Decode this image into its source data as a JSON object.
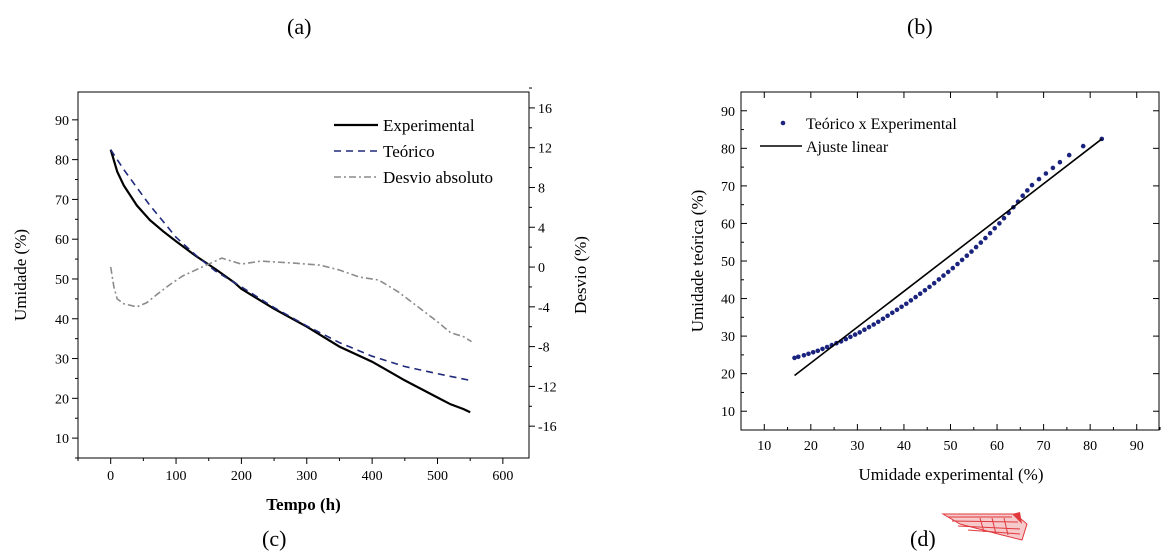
{
  "panel_labels": {
    "a": "(a)",
    "b": "(b)",
    "c": "(c)",
    "d": "(d)"
  },
  "colors": {
    "experimental": "#000000",
    "teorico": "#1f2a7a",
    "desvio": "#8c8c8c",
    "scatter": "#1a237e",
    "fit": "#000000",
    "stamp": "#e0393e"
  },
  "chart_data": [
    {
      "id": "left",
      "type": "line",
      "xlabel": "Tempo (h)",
      "ylabel": "Umidade (%)",
      "y2label": "Desvio (%)",
      "xlim": [
        -50,
        640
      ],
      "ylim": [
        5,
        97
      ],
      "y2lim": [
        -19.2,
        17.6
      ],
      "xticks": [
        "0",
        "100",
        "200",
        "300",
        "400",
        "500",
        "600"
      ],
      "yticks": [
        "10",
        "20",
        "30",
        "40",
        "50",
        "60",
        "70",
        "80",
        "90"
      ],
      "y2ticks": [
        "-16",
        "-12",
        "-8",
        "-4",
        "0",
        "4",
        "8",
        "12",
        "16"
      ],
      "legend_position": "top-right",
      "series": [
        {
          "name": "Experimental",
          "axis": "left",
          "style": "solid",
          "x": [
            0,
            10,
            20,
            40,
            60,
            80,
            100,
            130,
            160,
            190,
            200,
            250,
            300,
            350,
            400,
            450,
            500,
            520,
            540,
            550
          ],
          "y": [
            82.5,
            77,
            73.5,
            68.5,
            64.8,
            62,
            59.5,
            55.8,
            52.5,
            49,
            47.5,
            42.5,
            38,
            33,
            29.2,
            24.5,
            20.2,
            18.5,
            17.3,
            16.5
          ]
        },
        {
          "name": "Teórico",
          "axis": "left",
          "style": "dashed",
          "x": [
            0,
            20,
            40,
            60,
            80,
            100,
            130,
            160,
            200,
            250,
            300,
            350,
            400,
            450,
            500,
            550
          ],
          "y": [
            82.5,
            77.5,
            73,
            68.5,
            64.5,
            60.5,
            56,
            52,
            48,
            42.8,
            38.2,
            34,
            30.6,
            28,
            26.2,
            24.5
          ]
        },
        {
          "name": "Desvio absoluto",
          "axis": "right",
          "style": "dashdot",
          "x": [
            0,
            5,
            10,
            20,
            40,
            55,
            70,
            90,
            110,
            140,
            170,
            200,
            230,
            280,
            320,
            350,
            380,
            410,
            440,
            470,
            500,
            520,
            540,
            552
          ],
          "y": [
            0,
            -2,
            -3.2,
            -3.7,
            -4,
            -3.6,
            -2.8,
            -1.8,
            -0.9,
            0,
            0.9,
            0.3,
            0.6,
            0.4,
            0.2,
            -0.3,
            -1,
            -1.3,
            -2.5,
            -4,
            -5.5,
            -6.6,
            -7,
            -7.5
          ]
        }
      ]
    },
    {
      "id": "right",
      "type": "scatter",
      "xlabel": "Umidade experimental (%)",
      "ylabel": "Umidade teórica (%)",
      "xlim": [
        5,
        95
      ],
      "ylim": [
        5,
        95
      ],
      "xticks": [
        "10",
        "20",
        "30",
        "40",
        "50",
        "60",
        "70",
        "80",
        "90"
      ],
      "yticks": [
        "10",
        "20",
        "30",
        "40",
        "50",
        "60",
        "70",
        "80",
        "90"
      ],
      "legend_position": "top-left",
      "series": [
        {
          "name": "Teórico x Experimental",
          "style": "points",
          "x": [
            16.5,
            17.3,
            18.5,
            19.5,
            20.5,
            21.5,
            22.5,
            23.5,
            24.5,
            25.5,
            26.5,
            27.5,
            28.5,
            29.5,
            30.5,
            31.5,
            32.5,
            33.5,
            34.5,
            35.5,
            36.5,
            37.5,
            38.5,
            39.5,
            40.5,
            41.5,
            42.5,
            43.5,
            44.5,
            45.5,
            46.5,
            47.5,
            48.5,
            49.5,
            50.5,
            51.5,
            52.5,
            53.5,
            54.5,
            55.5,
            56.5,
            57.5,
            58.5,
            59.5,
            60.5,
            61.5,
            62.5,
            63.5,
            64.5,
            65.5,
            66.5,
            67.5,
            69,
            70.5,
            72,
            73.5,
            75.5,
            78.5,
            82.5
          ],
          "y": [
            24.2,
            24.5,
            24.9,
            25.3,
            25.7,
            26.1,
            26.6,
            27.1,
            27.6,
            28.1,
            28.6,
            29.2,
            29.8,
            30.4,
            31,
            31.7,
            32.4,
            33.1,
            33.8,
            34.6,
            35.4,
            36.2,
            37,
            37.8,
            38.6,
            39.5,
            40.4,
            41.3,
            42.2,
            43.1,
            44.1,
            45.1,
            46.1,
            47.1,
            48.1,
            49.2,
            50.3,
            51.4,
            52.5,
            53.7,
            54.9,
            56.1,
            57.4,
            58.7,
            60,
            61.4,
            62.8,
            64.3,
            65.8,
            67.4,
            68.8,
            70.2,
            71.8,
            73.3,
            74.8,
            76.3,
            78.2,
            80.6,
            82.5
          ]
        },
        {
          "name": "Ajuste linear",
          "style": "solid",
          "x": [
            16.5,
            82.5
          ],
          "y": [
            19.5,
            82.5
          ]
        }
      ]
    }
  ]
}
